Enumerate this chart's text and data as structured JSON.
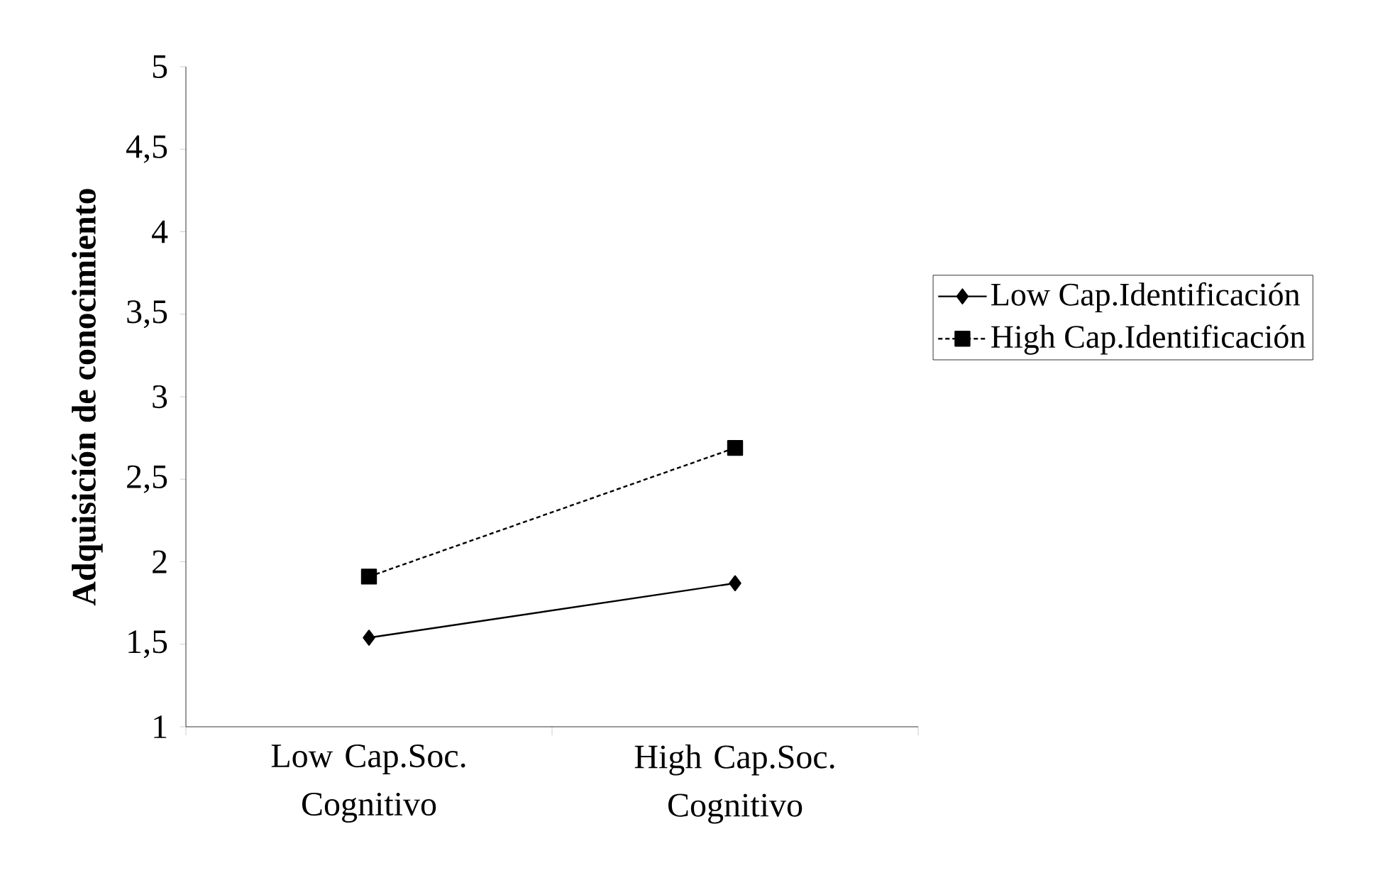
{
  "chart_data": {
    "type": "line",
    "ylabel": "Adquisición de conocimiento",
    "categories": [
      "Low Cap.Soc. Cognitivo",
      "High Cap.Soc. Cognitivo"
    ],
    "series": [
      {
        "name": "Low Cap.Identificación",
        "color": "#000000",
        "values": [
          1.54,
          1.87
        ],
        "marker": "diamond",
        "line_style": "solid"
      },
      {
        "name": "High Cap.Identificación",
        "color": "#000000",
        "values": [
          1.91,
          2.69
        ],
        "marker": "square",
        "line_style": "dotted"
      }
    ],
    "ylim": [
      1,
      5
    ],
    "yticks": [
      1,
      {
        "value": 1.5,
        "label": "1,5"
      },
      2,
      {
        "value": 2.5,
        "label": "2,5"
      },
      3,
      {
        "value": 3.5,
        "label": "3,5"
      },
      4,
      {
        "value": 4.5,
        "label": "4,5"
      },
      5
    ],
    "grid": false,
    "legend": "right"
  }
}
